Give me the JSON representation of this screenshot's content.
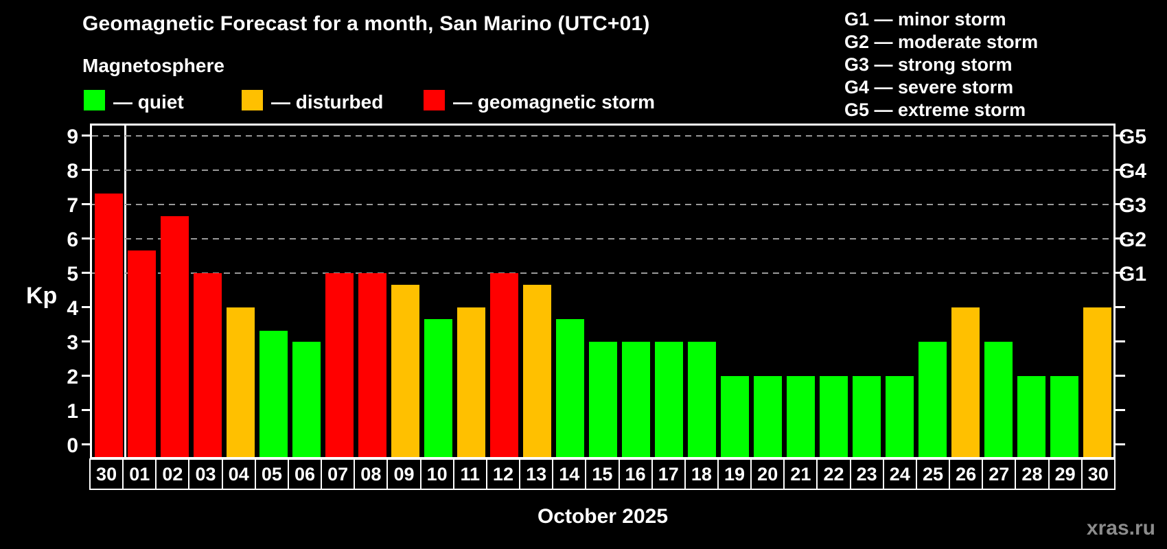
{
  "header": {
    "title": "Geomagnetic Forecast for a month, San Marino (UTC+01)",
    "subtitle": "Magnetosphere",
    "legend": [
      {
        "key": "quiet",
        "label": "— quiet"
      },
      {
        "key": "disturbed",
        "label": "— disturbed"
      },
      {
        "key": "storm",
        "label": "— geomagnetic storm"
      }
    ],
    "g_scale_legend": [
      "G1 — minor storm",
      "G2 — moderate storm",
      "G3 — strong storm",
      "G4 — severe storm",
      "G5 — extreme storm"
    ]
  },
  "colors": {
    "quiet": "#00ff00",
    "disturbed": "#ffc000",
    "storm": "#ff0000",
    "grid": "#9a9a9a",
    "axis": "#ffffff",
    "watermark": "#8c8c8c"
  },
  "watermark": "xras.ru",
  "month_label": "October 2025",
  "chart_data": {
    "type": "bar",
    "title": "Geomagnetic Forecast for a month, San Marino (UTC+01)",
    "subtitle": "Magnetosphere",
    "ylabel": "Kp",
    "xlabel": "October 2025",
    "ylim": [
      0,
      9.4
    ],
    "grid": "dashed horizontal at Kp 5-9 only",
    "legend_position": "top",
    "y_ticks": [
      0,
      1,
      2,
      3,
      4,
      5,
      6,
      7,
      8,
      9
    ],
    "gridlines_at": [
      5,
      6,
      7,
      8,
      9
    ],
    "right_axis_labels": [
      {
        "kp": 5,
        "label": "G1"
      },
      {
        "kp": 6,
        "label": "G2"
      },
      {
        "kp": 7,
        "label": "G3"
      },
      {
        "kp": 8,
        "label": "G4"
      },
      {
        "kp": 9,
        "label": "G5"
      }
    ],
    "separator_after_index": 0,
    "categories": [
      "30",
      "01",
      "02",
      "03",
      "04",
      "05",
      "06",
      "07",
      "08",
      "09",
      "10",
      "11",
      "12",
      "13",
      "14",
      "15",
      "16",
      "17",
      "18",
      "19",
      "20",
      "21",
      "22",
      "23",
      "24",
      "25",
      "26",
      "27",
      "28",
      "29",
      "30"
    ],
    "values": [
      7.33,
      5.67,
      6.67,
      5,
      4,
      3.33,
      3,
      5,
      5,
      4.67,
      3.67,
      4,
      5,
      4.67,
      3.67,
      3,
      3,
      3,
      3,
      2,
      2,
      2,
      2,
      2,
      2,
      3,
      4,
      3,
      2,
      2,
      4
    ],
    "statuses": [
      "storm",
      "storm",
      "storm",
      "storm",
      "disturbed",
      "quiet",
      "quiet",
      "storm",
      "storm",
      "disturbed",
      "quiet",
      "disturbed",
      "storm",
      "disturbed",
      "quiet",
      "quiet",
      "quiet",
      "quiet",
      "quiet",
      "quiet",
      "quiet",
      "quiet",
      "quiet",
      "quiet",
      "quiet",
      "quiet",
      "disturbed",
      "quiet",
      "quiet",
      "quiet",
      "disturbed"
    ]
  }
}
